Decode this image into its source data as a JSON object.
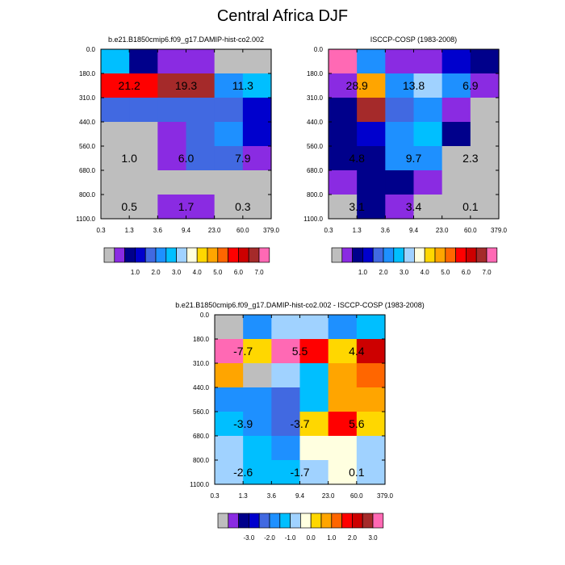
{
  "page": {
    "title": "Central Africa DJF"
  },
  "colors": {
    "missing": "#bebebe",
    "palette": [
      "#bebebe",
      "#8a2be2",
      "#00008b",
      "#0000cd",
      "#4169e1",
      "#1e90ff",
      "#00bfff",
      "#a0d2ff",
      "#ffffe0",
      "#ffd700",
      "#ffa500",
      "#ff6600",
      "#ff0000",
      "#cd0000",
      "#a52a2a",
      "#ff69b4"
    ]
  },
  "chart_data": [
    {
      "type": "heatmap",
      "title": "b.e21.B1850cmip6.f09_g17.DAMIP-hist-co2.002",
      "x_ticks": [
        "0.3",
        "1.3",
        "3.6",
        "9.4",
        "23.0",
        "60.0",
        "379.0"
      ],
      "y_ticks": [
        "0.0",
        "180.0",
        "310.0",
        "440.0",
        "560.0",
        "680.0",
        "800.0",
        "1100.0"
      ],
      "cell_colors": [
        [
          6,
          2,
          1,
          1,
          0,
          0
        ],
        [
          12,
          12,
          14,
          14,
          5,
          6
        ],
        [
          4,
          4,
          4,
          4,
          4,
          3
        ],
        [
          0,
          0,
          1,
          4,
          5,
          3
        ],
        [
          0,
          0,
          1,
          4,
          4,
          1
        ],
        [
          0,
          0,
          0,
          0,
          0,
          0
        ],
        [
          0,
          0,
          1,
          1,
          0,
          0
        ]
      ],
      "labels": [
        {
          "text": "21.2",
          "col": 1,
          "row": 1
        },
        {
          "text": "19.3",
          "col": 3,
          "row": 1
        },
        {
          "text": "11.3",
          "col": 5,
          "row": 1
        },
        {
          "text": "1.0",
          "col": 1,
          "row": 4
        },
        {
          "text": "6.0",
          "col": 3,
          "row": 4
        },
        {
          "text": "7.9",
          "col": 5,
          "row": 4
        },
        {
          "text": "0.5",
          "col": 1,
          "row": 6
        },
        {
          "text": "1.7",
          "col": 3,
          "row": 6
        },
        {
          "text": "0.3",
          "col": 5,
          "row": 6
        }
      ],
      "colorbar": {
        "labels": [
          "1.0",
          "2.0",
          "3.0",
          "4.0",
          "5.0",
          "6.0",
          "7.0"
        ]
      }
    },
    {
      "type": "heatmap",
      "title": "ISCCP-COSP (1983-2008)",
      "x_ticks": [
        "0.3",
        "1.3",
        "3.6",
        "9.4",
        "23.0",
        "60.0",
        "379.0"
      ],
      "y_ticks": [
        "0.0",
        "180.0",
        "310.0",
        "440.0",
        "560.0",
        "680.0",
        "800.0",
        "1100.0"
      ],
      "cell_colors": [
        [
          15,
          5,
          1,
          1,
          3,
          2
        ],
        [
          1,
          10,
          5,
          7,
          5,
          1
        ],
        [
          2,
          14,
          4,
          5,
          1,
          0
        ],
        [
          2,
          3,
          5,
          6,
          2,
          0
        ],
        [
          2,
          2,
          5,
          5,
          0,
          0
        ],
        [
          1,
          2,
          2,
          1,
          0,
          0
        ],
        [
          0,
          2,
          1,
          0,
          0,
          0
        ]
      ],
      "labels": [
        {
          "text": "28.9",
          "col": 1,
          "row": 1
        },
        {
          "text": "13.8",
          "col": 3,
          "row": 1
        },
        {
          "text": "6.9",
          "col": 5,
          "row": 1
        },
        {
          "text": "4.8",
          "col": 1,
          "row": 4
        },
        {
          "text": "9.7",
          "col": 3,
          "row": 4
        },
        {
          "text": "2.3",
          "col": 5,
          "row": 4
        },
        {
          "text": "3.1",
          "col": 1,
          "row": 6
        },
        {
          "text": "3.4",
          "col": 3,
          "row": 6
        },
        {
          "text": "0.1",
          "col": 5,
          "row": 6
        }
      ],
      "colorbar": {
        "labels": [
          "1.0",
          "2.0",
          "3.0",
          "4.0",
          "5.0",
          "6.0",
          "7.0"
        ]
      }
    },
    {
      "type": "heatmap",
      "title": "b.e21.B1850cmip6.f09_g17.DAMIP-hist-co2.002 - ISCCP-COSP (1983-2008)",
      "x_ticks": [
        "0.3",
        "1.3",
        "3.6",
        "9.4",
        "23.0",
        "60.0",
        "379.0"
      ],
      "y_ticks": [
        "0.0",
        "180.0",
        "310.0",
        "440.0",
        "560.0",
        "680.0",
        "800.0",
        "1100.0"
      ],
      "cell_colors": [
        [
          0,
          5,
          7,
          7,
          5,
          6
        ],
        [
          15,
          9,
          15,
          12,
          9,
          13
        ],
        [
          10,
          0,
          7,
          6,
          10,
          11
        ],
        [
          5,
          5,
          4,
          6,
          10,
          10
        ],
        [
          6,
          5,
          4,
          9,
          12,
          9
        ],
        [
          7,
          6,
          5,
          8,
          8,
          7
        ],
        [
          7,
          6,
          6,
          7,
          8,
          7
        ]
      ],
      "labels": [
        {
          "text": "-7.7",
          "col": 1,
          "row": 1
        },
        {
          "text": "5.5",
          "col": 3,
          "row": 1
        },
        {
          "text": "4.4",
          "col": 5,
          "row": 1
        },
        {
          "text": "-3.9",
          "col": 1,
          "row": 4
        },
        {
          "text": "-3.7",
          "col": 3,
          "row": 4
        },
        {
          "text": "5.6",
          "col": 5,
          "row": 4
        },
        {
          "text": "-2.6",
          "col": 1,
          "row": 6
        },
        {
          "text": "-1.7",
          "col": 3,
          "row": 6
        },
        {
          "text": "0.1",
          "col": 5,
          "row": 6
        }
      ],
      "colorbar": {
        "labels": [
          "-3.0",
          "-2.0",
          "-1.0",
          "0.0",
          "1.0",
          "2.0",
          "3.0"
        ]
      }
    }
  ]
}
